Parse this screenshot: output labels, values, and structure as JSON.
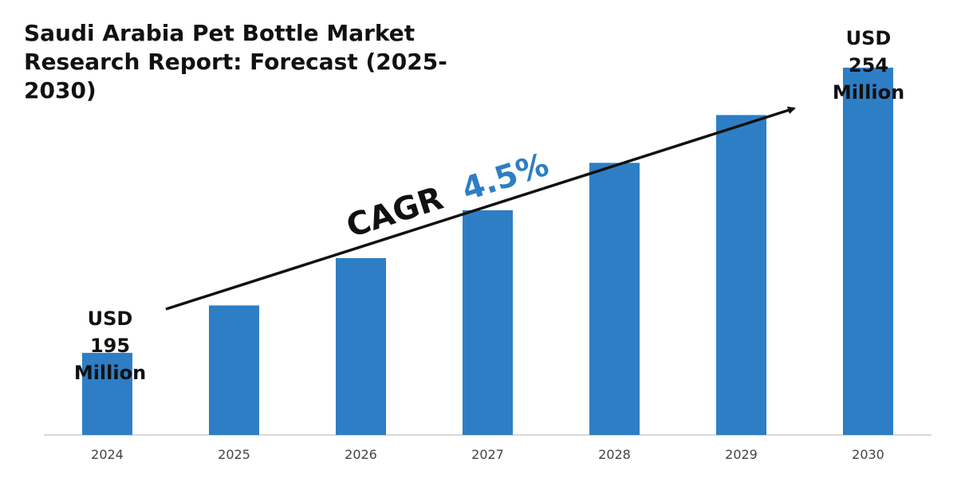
{
  "chart_data": {
    "type": "bar",
    "title": "Saudi Arabia Pet Bottle Market Research Report: Forecast (2025-2030)",
    "categories": [
      "2024",
      "2025",
      "2026",
      "2027",
      "2028",
      "2029",
      "2030"
    ],
    "values": [
      195,
      204.8,
      214.6,
      224.5,
      234.3,
      244.2,
      254
    ],
    "unit": "USD Million",
    "ylim": [
      178,
      268
    ],
    "grid": false,
    "legend": "none",
    "bar_color": "#2E7EC5",
    "annotations": {
      "start": [
        "USD",
        "195",
        "Million"
      ],
      "end": [
        "USD",
        "254",
        "Million"
      ],
      "cagr_label": "CAGR",
      "cagr_value": "4.5%",
      "cagr_value_color": "#2E7EC5"
    }
  }
}
